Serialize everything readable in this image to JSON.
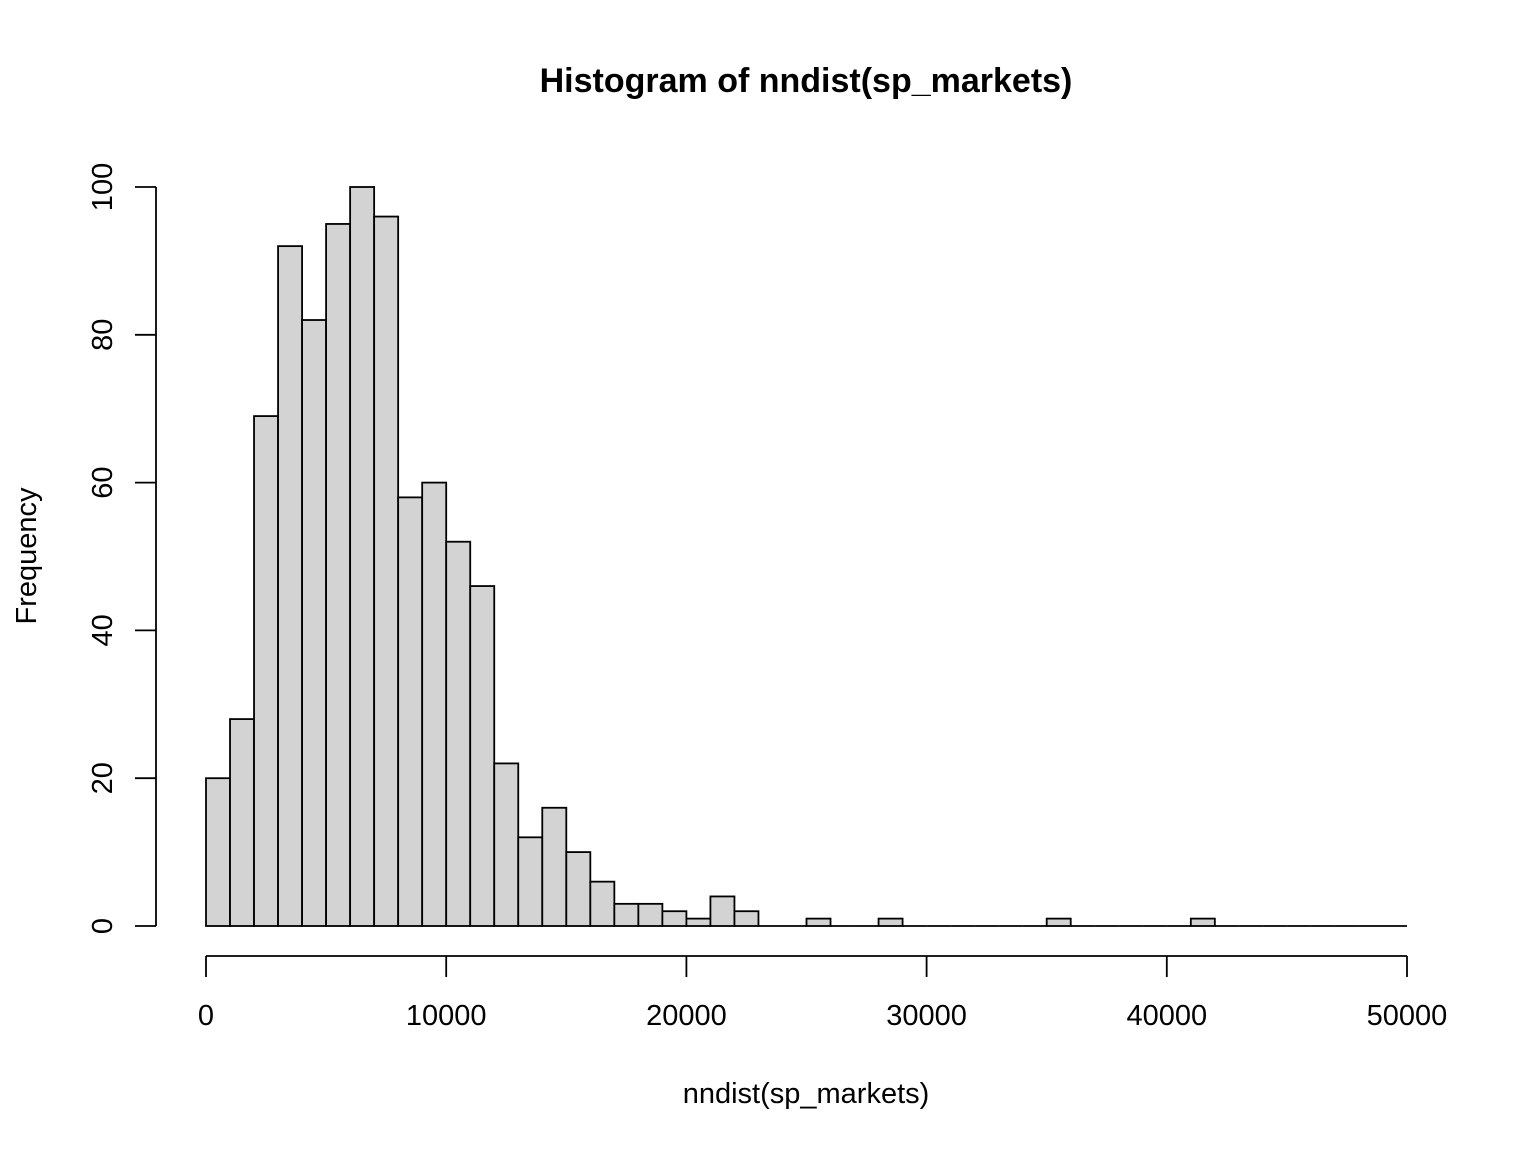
{
  "chart_data": {
    "type": "bar",
    "title": "Histogram of nndist(sp_markets)",
    "xlabel": "nndist(sp_markets)",
    "ylabel": "Frequency",
    "bin_width": 1000,
    "bin_start": 0,
    "values": [
      20,
      28,
      69,
      92,
      82,
      95,
      100,
      96,
      58,
      60,
      52,
      46,
      22,
      12,
      16,
      10,
      6,
      3,
      3,
      2,
      1,
      4,
      2,
      0,
      0,
      1,
      0,
      0,
      1,
      0,
      0,
      0,
      0,
      0,
      0,
      1,
      0,
      0,
      0,
      0,
      0,
      1,
      0,
      0,
      0,
      0,
      0,
      0,
      0,
      0
    ],
    "xlim": [
      0,
      50000
    ],
    "ylim": [
      0,
      100
    ],
    "x_ticks": [
      "0",
      "10000",
      "20000",
      "30000",
      "40000",
      "50000"
    ],
    "y_ticks": [
      "0",
      "20",
      "40",
      "60",
      "80",
      "100"
    ],
    "bar_fill": "#d3d3d3",
    "bar_stroke": "#000000",
    "grid": false,
    "legend": "none"
  }
}
